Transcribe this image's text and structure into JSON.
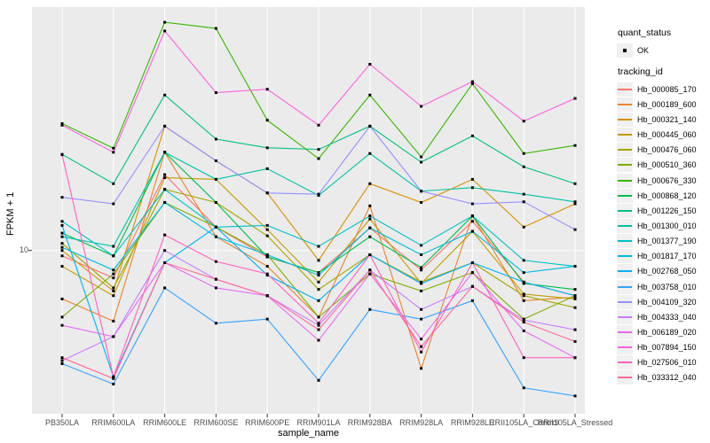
{
  "figure": {
    "panel_bg": "#EBEBEB",
    "grid_color": "#FFFFFF",
    "tick_color": "#333333",
    "tick_label_color": "#4D4D4D",
    "point_color": "#000000"
  },
  "axes": {
    "x_title": "sample_name",
    "y_title": "FPKM + 1",
    "y_scale": "log10",
    "y_tick_labels": [
      "10"
    ],
    "y_tick_values": [
      10
    ]
  },
  "legend": {
    "quant_status_title": "quant_status",
    "quant_status_items": [
      {
        "label": "OK"
      }
    ],
    "tracking_id_title": "tracking_id"
  },
  "chart_data": {
    "type": "line",
    "title": "",
    "xlabel": "sample_name",
    "ylabel": "FPKM + 1",
    "y_scale": "log10",
    "ylim": [
      2.2,
      100
    ],
    "grid": true,
    "legend_position": "right",
    "categories": [
      "PB350LA",
      "RRIM600LA",
      "RRIM600LE",
      "RRIM600SE",
      "RRIM600PE",
      "RRIM901LA",
      "RRIM928BA",
      "RRIM928LA",
      "RRIM928LE",
      "RRII105LA_Control",
      "RRII105LA_Stressed"
    ],
    "series": [
      {
        "name": "Hb_000085_170",
        "color": "#F8766D",
        "values": [
          9.5,
          7.7,
          20.6,
          12.5,
          9.4,
          8.1,
          12.4,
          8.3,
          13.2,
          7.4,
          6.5
        ]
      },
      {
        "name": "Hb_000189_600",
        "color": "#EA8331",
        "values": [
          6.3,
          5.1,
          25.5,
          11.4,
          8.6,
          5.3,
          15.3,
          3.25,
          13.9,
          6.2,
          6.4
        ]
      },
      {
        "name": "Hb_000321_140",
        "color": "#D89000",
        "values": [
          10.0,
          6.8,
          32.7,
          23.5,
          17.3,
          9.1,
          18.9,
          15.8,
          19.7,
          12.5,
          15.6
        ]
      },
      {
        "name": "Hb_000445_060",
        "color": "#C09B00",
        "values": [
          8.6,
          6.5,
          20.0,
          19.7,
          12.2,
          7.4,
          13.5,
          7.3,
          12.0,
          6.6,
          6.3
        ]
      },
      {
        "name": "Hb_000476_060",
        "color": "#A3A500",
        "values": [
          10.7,
          7.0,
          17.9,
          15.8,
          11.5,
          6.9,
          9.6,
          7.4,
          8.9,
          6.5,
          5.8
        ]
      },
      {
        "name": "Hb_000510_360",
        "color": "#7CAE00",
        "values": [
          5.3,
          8.0,
          15.8,
          12.5,
          9.6,
          5.3,
          8.0,
          6.8,
          8.1,
          5.2,
          6.5
        ]
      },
      {
        "name": "Hb_000676_330",
        "color": "#39B600",
        "values": [
          33.5,
          26.5,
          88.0,
          83.0,
          34.6,
          24.0,
          44.0,
          24.4,
          49.0,
          25.2,
          27.2
        ]
      },
      {
        "name": "Hb_000868_120",
        "color": "#00BB4E",
        "values": [
          11.8,
          9.5,
          25.5,
          15.8,
          9.4,
          8.1,
          11.4,
          8.5,
          13.9,
          7.3,
          6.9
        ]
      },
      {
        "name": "Hb_001226_150",
        "color": "#00BF7D",
        "values": [
          25.0,
          18.9,
          44.0,
          28.9,
          26.6,
          26.2,
          32.7,
          23.2,
          29.8,
          22.2,
          18.9
        ]
      },
      {
        "name": "Hb_001300_010",
        "color": "#00C1A3",
        "values": [
          11.4,
          10.4,
          25.5,
          19.7,
          21.8,
          16.9,
          25.2,
          17.6,
          18.2,
          17.1,
          15.9
        ]
      },
      {
        "name": "Hb_001377_190",
        "color": "#00BFC4",
        "values": [
          13.2,
          9.5,
          17.9,
          12.5,
          12.7,
          10.4,
          13.9,
          10.5,
          13.9,
          9.1,
          8.6
        ]
      },
      {
        "name": "Hb_001817_170",
        "color": "#00BAE0",
        "values": [
          10.3,
          8.3,
          15.8,
          11.4,
          9.6,
          7.9,
          12.4,
          9.6,
          12.0,
          8.1,
          8.6
        ]
      },
      {
        "name": "Hb_002768_050",
        "color": "#00B0F6",
        "values": [
          12.7,
          3.0,
          8.9,
          12.5,
          7.9,
          6.2,
          9.6,
          7.3,
          8.9,
          7.4,
          6.5
        ]
      },
      {
        "name": "Hb_003758_010",
        "color": "#35A2FF",
        "values": [
          3.4,
          2.8,
          7.0,
          5.0,
          5.2,
          2.9,
          5.7,
          5.2,
          6.2,
          2.7,
          2.5
        ]
      },
      {
        "name": "Hb_004109_320",
        "color": "#9590FF",
        "values": [
          16.6,
          15.6,
          32.7,
          23.5,
          17.3,
          17.1,
          32.7,
          17.6,
          15.6,
          15.9,
          12.2
        ]
      },
      {
        "name": "Hb_004333_040",
        "color": "#C77CFF",
        "values": [
          3.5,
          4.4,
          10.0,
          7.6,
          6.5,
          4.9,
          8.3,
          5.7,
          7.1,
          5.15,
          4.7
        ]
      },
      {
        "name": "Hb_006189_020",
        "color": "#E76BF3",
        "values": [
          4.9,
          4.4,
          8.9,
          7.0,
          6.5,
          4.25,
          8.0,
          4.3,
          8.1,
          4.65,
          3.6
        ]
      },
      {
        "name": "Hb_007894_150",
        "color": "#FA62DB",
        "values": [
          33.0,
          25.5,
          81.0,
          45.0,
          46.5,
          33.0,
          59.0,
          39.5,
          50.0,
          34.3,
          42.6
        ]
      },
      {
        "name": "Hb_027506_010",
        "color": "#FF62BC",
        "values": [
          24.9,
          3.0,
          11.6,
          9.0,
          8.0,
          5.0,
          9.6,
          3.8,
          8.9,
          3.6,
          3.6
        ]
      },
      {
        "name": "Hb_033312_040",
        "color": "#FF6A98",
        "values": [
          3.6,
          2.95,
          8.9,
          7.6,
          6.5,
          4.7,
          8.3,
          4.0,
          7.1,
          5.05,
          4.2
        ]
      }
    ]
  }
}
